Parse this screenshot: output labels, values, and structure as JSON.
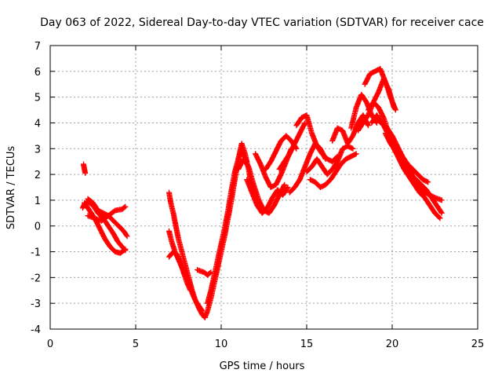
{
  "chart_data": {
    "type": "scatter",
    "title": "Day 063 of 2022, Sidereal Day-to-day VTEC variation (SDTVAR) for receiver cace",
    "xlabel": "GPS time / hours",
    "ylabel": "SDTVAR / TECUs",
    "xlim": [
      0,
      25
    ],
    "ylim": [
      -4,
      7
    ],
    "xticks": [
      0,
      5,
      10,
      15,
      20,
      25
    ],
    "yticks": [
      -4,
      -3,
      -2,
      -1,
      0,
      1,
      2,
      3,
      4,
      5,
      6,
      7
    ],
    "grid": true,
    "marker": "plus",
    "color": "#ff0000",
    "segments": [
      {
        "x": [
          1.95,
          2.0,
          2.05
        ],
        "y": [
          2.4,
          2.2,
          2.05
        ]
      },
      {
        "x": [
          1.9,
          2.0,
          2.2,
          2.5,
          2.8,
          3.1,
          3.4,
          3.7,
          3.95,
          4.2,
          4.4
        ],
        "y": [
          0.7,
          0.85,
          0.95,
          0.8,
          0.5,
          0.3,
          0.0,
          -0.3,
          -0.6,
          -0.8,
          -0.95
        ]
      },
      {
        "x": [
          2.0,
          2.3,
          2.6,
          2.9,
          3.2,
          3.5,
          3.8,
          4.1,
          4.4
        ],
        "y": [
          0.9,
          0.6,
          0.3,
          -0.1,
          -0.5,
          -0.8,
          -1.0,
          -1.05,
          -0.9
        ]
      },
      {
        "x": [
          2.2,
          2.5,
          2.8,
          3.1,
          3.4,
          3.7,
          4.0,
          4.3,
          4.5
        ],
        "y": [
          1.05,
          0.9,
          0.6,
          0.5,
          0.4,
          0.2,
          0.0,
          -0.2,
          -0.4
        ]
      },
      {
        "x": [
          2.2,
          2.6,
          3.0,
          3.4,
          3.8,
          4.2,
          4.4
        ],
        "y": [
          0.4,
          0.3,
          0.2,
          0.4,
          0.6,
          0.65,
          0.75
        ]
      },
      {
        "x": [
          6.95,
          7.05,
          7.2,
          7.35,
          7.5,
          7.7,
          7.9,
          8.1,
          8.3,
          8.5,
          8.7,
          8.9,
          9.05
        ],
        "y": [
          1.3,
          0.9,
          0.5,
          0.0,
          -0.5,
          -1.0,
          -1.5,
          -2.0,
          -2.5,
          -2.9,
          -3.2,
          -3.45,
          -3.55
        ]
      },
      {
        "x": [
          6.95,
          7.1,
          7.3,
          7.5,
          7.7,
          7.9,
          8.1,
          8.3,
          8.5,
          8.7,
          8.9
        ],
        "y": [
          -0.2,
          -0.6,
          -1.0,
          -1.3,
          -1.6,
          -1.9,
          -2.2,
          -2.6,
          -2.9,
          -3.1,
          -3.3
        ]
      },
      {
        "x": [
          6.95,
          7.2,
          7.4,
          7.6,
          7.8,
          8.0,
          8.2
        ],
        "y": [
          -1.2,
          -1.0,
          -1.1,
          -1.4,
          -1.8,
          -2.2,
          -2.5
        ]
      },
      {
        "x": [
          8.6,
          8.8,
          9.0,
          9.2,
          9.4
        ],
        "y": [
          -1.7,
          -1.75,
          -1.8,
          -1.9,
          -1.8
        ]
      },
      {
        "x": [
          9.05,
          9.2,
          9.4,
          9.6,
          9.8,
          10.0,
          10.2,
          10.4,
          10.6,
          10.8,
          11.0,
          11.2,
          11.4,
          11.6,
          11.8,
          12.0
        ],
        "y": [
          -3.55,
          -3.3,
          -2.8,
          -2.2,
          -1.6,
          -1.0,
          -0.4,
          0.3,
          1.0,
          1.8,
          2.6,
          3.2,
          2.8,
          2.2,
          1.5,
          1.0
        ]
      },
      {
        "x": [
          9.2,
          9.4,
          9.6,
          9.8,
          10.0,
          10.2,
          10.4,
          10.6,
          10.8,
          11.0,
          11.2,
          11.5
        ],
        "y": [
          -3.0,
          -2.5,
          -1.9,
          -1.3,
          -0.7,
          -0.1,
          0.6,
          1.4,
          2.1,
          2.6,
          2.9,
          2.5
        ]
      },
      {
        "x": [
          11.0,
          11.3,
          11.6,
          11.9,
          12.2,
          12.5,
          12.8,
          13.1,
          13.4,
          13.7
        ],
        "y": [
          2.2,
          2.6,
          2.3,
          1.6,
          1.0,
          0.6,
          0.5,
          0.8,
          1.2,
          1.6
        ]
      },
      {
        "x": [
          11.5,
          11.8,
          12.1,
          12.4,
          12.7,
          13.0,
          13.3,
          13.6,
          13.9
        ],
        "y": [
          1.8,
          1.3,
          0.8,
          0.5,
          0.7,
          1.1,
          1.4,
          1.2,
          1.5
        ]
      },
      {
        "x": [
          12.0,
          12.3,
          12.6,
          12.9,
          13.2,
          13.5,
          13.8,
          14.1
        ],
        "y": [
          2.8,
          2.4,
          1.9,
          1.5,
          1.6,
          2.0,
          2.5,
          3.0
        ]
      },
      {
        "x": [
          12.6,
          12.9,
          13.2,
          13.5,
          13.8,
          14.1,
          14.4
        ],
        "y": [
          2.2,
          2.5,
          2.9,
          3.3,
          3.5,
          3.3,
          3.0
        ]
      },
      {
        "x": [
          13.4,
          13.7,
          14.0,
          14.3,
          14.6,
          14.9
        ],
        "y": [
          2.2,
          2.5,
          2.8,
          3.2,
          3.6,
          4.0
        ]
      },
      {
        "x": [
          14.0,
          14.3,
          14.6,
          14.9,
          15.2,
          15.5,
          15.8,
          16.1
        ],
        "y": [
          1.3,
          1.5,
          1.8,
          2.3,
          2.8,
          3.2,
          3.0,
          2.6
        ]
      },
      {
        "x": [
          14.4,
          14.7,
          15.0,
          15.3,
          15.6,
          15.9,
          16.2,
          16.5,
          16.8
        ],
        "y": [
          3.9,
          4.2,
          4.3,
          3.6,
          3.1,
          2.8,
          2.6,
          2.5,
          2.7
        ]
      },
      {
        "x": [
          15.0,
          15.3,
          15.6,
          15.9,
          16.2,
          16.5,
          16.8,
          17.1,
          17.4,
          17.7
        ],
        "y": [
          2.1,
          2.3,
          2.6,
          2.3,
          2.0,
          2.2,
          2.5,
          3.0,
          3.1,
          3.0
        ]
      },
      {
        "x": [
          15.2,
          15.5,
          15.8,
          16.1,
          16.4,
          16.7,
          17.0,
          17.3,
          17.6,
          17.9
        ],
        "y": [
          1.8,
          1.7,
          1.5,
          1.6,
          1.8,
          2.1,
          2.4,
          2.6,
          2.7,
          2.8
        ]
      },
      {
        "x": [
          16.5,
          16.8,
          17.1,
          17.4,
          17.7,
          18.0,
          18.3,
          18.6
        ],
        "y": [
          3.3,
          3.8,
          3.7,
          3.2,
          3.5,
          4.0,
          4.3,
          3.9
        ]
      },
      {
        "x": [
          17.6,
          17.9,
          18.2,
          18.5,
          18.8,
          19.1
        ],
        "y": [
          3.8,
          4.6,
          5.1,
          4.8,
          4.3,
          4.0
        ]
      },
      {
        "x": [
          18.0,
          18.3,
          18.6,
          18.9,
          19.2,
          19.5,
          19.8,
          20.1
        ],
        "y": [
          3.7,
          4.0,
          4.3,
          4.8,
          5.2,
          5.7,
          5.3,
          4.6
        ]
      },
      {
        "x": [
          18.4,
          18.7,
          19.0,
          19.3,
          19.6,
          19.9,
          20.2
        ],
        "y": [
          5.5,
          5.9,
          6.0,
          6.1,
          5.6,
          5.0,
          4.5
        ]
      },
      {
        "x": [
          18.6,
          18.9,
          19.2,
          19.5,
          19.8,
          20.1,
          20.4,
          20.7,
          21.0,
          21.3,
          21.6,
          21.9,
          22.2,
          22.5,
          22.8
        ],
        "y": [
          4.5,
          4.8,
          4.6,
          4.2,
          3.6,
          3.0,
          2.6,
          2.2,
          1.9,
          1.6,
          1.3,
          1.1,
          0.8,
          0.5,
          0.3
        ]
      },
      {
        "x": [
          18.8,
          19.1,
          19.4,
          19.7,
          20.0,
          20.3,
          20.6,
          20.9,
          21.2,
          21.5,
          21.8,
          22.1
        ],
        "y": [
          4.0,
          4.3,
          4.0,
          3.8,
          3.5,
          3.1,
          2.7,
          2.4,
          2.2,
          2.0,
          1.8,
          1.7
        ]
      },
      {
        "x": [
          19.2,
          19.5,
          19.8,
          20.1,
          20.4,
          20.7,
          21.0,
          21.3,
          21.6,
          21.9,
          22.2,
          22.5,
          22.9
        ],
        "y": [
          4.1,
          3.9,
          3.5,
          3.2,
          2.8,
          2.5,
          2.2,
          1.8,
          1.5,
          1.3,
          1.2,
          1.1,
          1.0
        ]
      },
      {
        "x": [
          19.6,
          19.9,
          20.2,
          20.5,
          20.8,
          21.1,
          21.4,
          21.7,
          22.0,
          22.3,
          22.6,
          22.9
        ],
        "y": [
          3.6,
          3.2,
          2.9,
          2.6,
          2.3,
          2.0,
          1.8,
          1.6,
          1.4,
          1.1,
          0.8,
          0.5
        ]
      }
    ]
  }
}
